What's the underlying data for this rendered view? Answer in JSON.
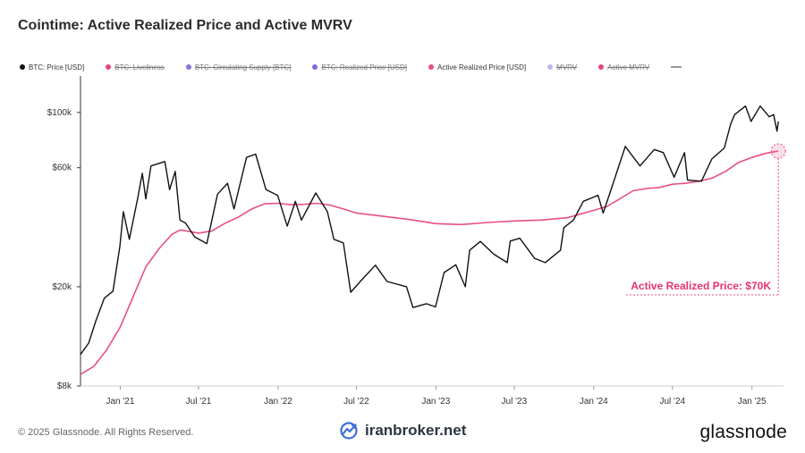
{
  "title": "Cointime: Active Realized Price and Active MVRV",
  "legend": [
    {
      "label": "BTC: Price [USD]",
      "color": "#111111",
      "active": true
    },
    {
      "label": "BTC: Liveliness",
      "color": "#e5457a",
      "active": false
    },
    {
      "label": "BTC: Circulating Supply [BTC]",
      "color": "#8a72d8",
      "active": false
    },
    {
      "label": "BTC: Realized Price [USD]",
      "color": "#7b6be0",
      "active": false
    },
    {
      "label": "Active Realized Price [USD]",
      "color": "#e8507f",
      "active": true
    },
    {
      "label": "MVRV",
      "color": "#c4b5f0",
      "active": false
    },
    {
      "label": "Active MVRV",
      "color": "#e5457a",
      "active": false
    }
  ],
  "annotation": "Active Realized Price: $70K",
  "footer": {
    "copyright": "© 2025 Glassnode. All Rights Reserved.",
    "watermark": "iranbroker.net",
    "brand": "glassnode"
  },
  "chart_data": {
    "type": "line",
    "yscale": "log",
    "ylim": [
      8000,
      140000
    ],
    "y_ticks": [
      {
        "value": 100000,
        "label": "$100k"
      },
      {
        "value": 60000,
        "label": "$60k"
      },
      {
        "value": 20000,
        "label": "$20k"
      },
      {
        "value": 8000,
        "label": "$8k"
      }
    ],
    "x_range": [
      "2020-10-01",
      "2025-03-15"
    ],
    "x_ticks": [
      {
        "date": "2021-01-01",
        "label": "Jan '21"
      },
      {
        "date": "2021-07-01",
        "label": "Jul '21"
      },
      {
        "date": "2022-01-01",
        "label": "Jan '22"
      },
      {
        "date": "2022-07-01",
        "label": "Jul '22"
      },
      {
        "date": "2023-01-01",
        "label": "Jan '23"
      },
      {
        "date": "2023-07-01",
        "label": "Jul '23"
      },
      {
        "date": "2024-01-01",
        "label": "Jan '24"
      },
      {
        "date": "2024-07-01",
        "label": "Jul '24"
      },
      {
        "date": "2025-01-01",
        "label": "Jan '25"
      }
    ],
    "series": [
      {
        "name": "BTC: Price [USD]",
        "color": "#111111",
        "points": [
          [
            "2020-10-01",
            10700
          ],
          [
            "2020-10-20",
            11900
          ],
          [
            "2020-11-05",
            14500
          ],
          [
            "2020-11-25",
            18000
          ],
          [
            "2020-12-15",
            19200
          ],
          [
            "2020-12-31",
            29000
          ],
          [
            "2021-01-08",
            40000
          ],
          [
            "2021-01-22",
            31000
          ],
          [
            "2021-02-10",
            45000
          ],
          [
            "2021-02-21",
            57000
          ],
          [
            "2021-03-01",
            45000
          ],
          [
            "2021-03-13",
            61000
          ],
          [
            "2021-04-14",
            63500
          ],
          [
            "2021-04-25",
            49000
          ],
          [
            "2021-05-08",
            58000
          ],
          [
            "2021-05-19",
            37000
          ],
          [
            "2021-06-01",
            36000
          ],
          [
            "2021-06-22",
            31700
          ],
          [
            "2021-07-20",
            29800
          ],
          [
            "2021-08-14",
            47000
          ],
          [
            "2021-09-06",
            52000
          ],
          [
            "2021-09-21",
            41000
          ],
          [
            "2021-10-20",
            66000
          ],
          [
            "2021-11-10",
            68000
          ],
          [
            "2021-12-04",
            49000
          ],
          [
            "2021-12-31",
            46500
          ],
          [
            "2022-01-22",
            35000
          ],
          [
            "2022-02-10",
            44000
          ],
          [
            "2022-02-24",
            37000
          ],
          [
            "2022-03-29",
            47500
          ],
          [
            "2022-04-25",
            40000
          ],
          [
            "2022-05-10",
            31000
          ],
          [
            "2022-06-01",
            30000
          ],
          [
            "2022-06-18",
            19000
          ],
          [
            "2022-07-10",
            21000
          ],
          [
            "2022-08-14",
            24400
          ],
          [
            "2022-09-10",
            21000
          ],
          [
            "2022-10-25",
            20000
          ],
          [
            "2022-11-09",
            16500
          ],
          [
            "2022-12-10",
            17100
          ],
          [
            "2022-12-31",
            16600
          ],
          [
            "2023-01-20",
            22800
          ],
          [
            "2023-02-16",
            24500
          ],
          [
            "2023-03-10",
            20000
          ],
          [
            "2023-03-20",
            28000
          ],
          [
            "2023-04-14",
            30400
          ],
          [
            "2023-05-15",
            27000
          ],
          [
            "2023-06-15",
            25000
          ],
          [
            "2023-06-22",
            30500
          ],
          [
            "2023-07-14",
            31300
          ],
          [
            "2023-08-17",
            26000
          ],
          [
            "2023-09-11",
            25000
          ],
          [
            "2023-10-16",
            28000
          ],
          [
            "2023-10-24",
            34500
          ],
          [
            "2023-11-15",
            37000
          ],
          [
            "2023-12-08",
            44000
          ],
          [
            "2024-01-11",
            46500
          ],
          [
            "2024-01-23",
            39500
          ],
          [
            "2024-02-15",
            52000
          ],
          [
            "2024-03-14",
            73000
          ],
          [
            "2024-04-17",
            61000
          ],
          [
            "2024-05-20",
            71000
          ],
          [
            "2024-06-10",
            69000
          ],
          [
            "2024-07-05",
            55000
          ],
          [
            "2024-07-29",
            69000
          ],
          [
            "2024-08-05",
            53500
          ],
          [
            "2024-09-06",
            53000
          ],
          [
            "2024-09-30",
            65000
          ],
          [
            "2024-10-29",
            72000
          ],
          [
            "2024-11-13",
            90000
          ],
          [
            "2024-11-22",
            98000
          ],
          [
            "2024-12-17",
            106000
          ],
          [
            "2024-12-30",
            92000
          ],
          [
            "2025-01-20",
            106000
          ],
          [
            "2025-02-10",
            96000
          ],
          [
            "2025-02-20",
            98000
          ],
          [
            "2025-02-28",
            84000
          ],
          [
            "2025-03-03",
            92000
          ]
        ]
      },
      {
        "name": "Active Realized Price [USD]",
        "color": "#e8507f",
        "points": [
          [
            "2020-10-01",
            8900
          ],
          [
            "2020-11-01",
            9600
          ],
          [
            "2020-12-01",
            11200
          ],
          [
            "2021-01-01",
            13800
          ],
          [
            "2021-02-01",
            18500
          ],
          [
            "2021-03-01",
            24000
          ],
          [
            "2021-04-01",
            28500
          ],
          [
            "2021-05-01",
            32500
          ],
          [
            "2021-05-20",
            33800
          ],
          [
            "2021-07-01",
            32800
          ],
          [
            "2021-08-01",
            33500
          ],
          [
            "2021-09-01",
            36000
          ],
          [
            "2021-10-01",
            38000
          ],
          [
            "2021-11-01",
            41000
          ],
          [
            "2021-12-01",
            43000
          ],
          [
            "2022-01-01",
            43200
          ],
          [
            "2022-02-01",
            42600
          ],
          [
            "2022-03-01",
            42800
          ],
          [
            "2022-04-01",
            43200
          ],
          [
            "2022-05-01",
            42500
          ],
          [
            "2022-06-01",
            41000
          ],
          [
            "2022-07-01",
            39500
          ],
          [
            "2022-09-01",
            38300
          ],
          [
            "2022-11-01",
            37200
          ],
          [
            "2023-01-01",
            35800
          ],
          [
            "2023-03-01",
            35500
          ],
          [
            "2023-05-01",
            36200
          ],
          [
            "2023-07-01",
            36700
          ],
          [
            "2023-09-01",
            37000
          ],
          [
            "2023-11-01",
            37800
          ],
          [
            "2024-01-01",
            40500
          ],
          [
            "2024-02-01",
            42000
          ],
          [
            "2024-03-01",
            45000
          ],
          [
            "2024-04-01",
            48500
          ],
          [
            "2024-05-01",
            49500
          ],
          [
            "2024-06-01",
            50000
          ],
          [
            "2024-07-01",
            51500
          ],
          [
            "2024-08-01",
            52000
          ],
          [
            "2024-09-01",
            53000
          ],
          [
            "2024-10-01",
            54500
          ],
          [
            "2024-11-01",
            58000
          ],
          [
            "2024-12-01",
            63000
          ],
          [
            "2025-01-01",
            66000
          ],
          [
            "2025-02-01",
            68500
          ],
          [
            "2025-03-03",
            70000
          ]
        ]
      }
    ]
  }
}
